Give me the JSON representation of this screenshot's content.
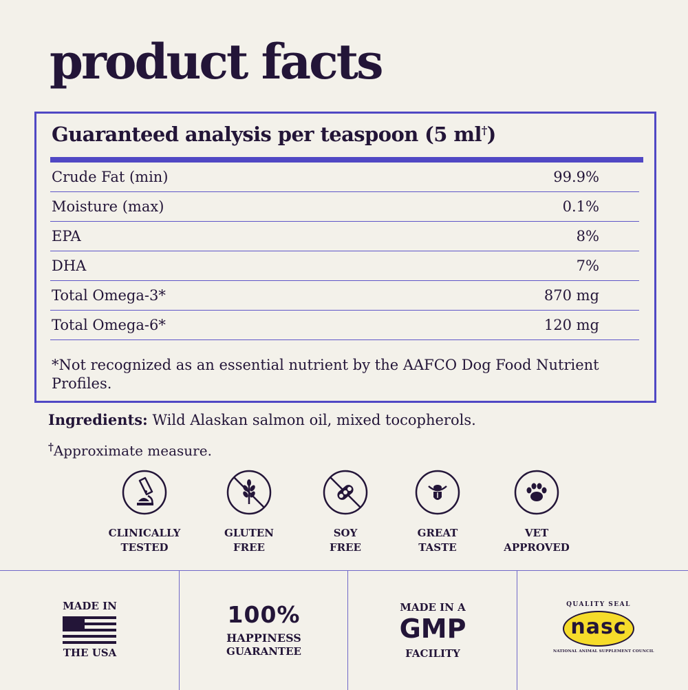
{
  "title": "product facts",
  "analysis": {
    "heading": "Guaranteed analysis per teaspoon (5 ml",
    "heading_mark": "†",
    "heading_close": ")",
    "rows": [
      {
        "label": "Crude Fat (min)",
        "value": "99.9%"
      },
      {
        "label": "Moisture (max)",
        "value": "0.1%"
      },
      {
        "label": "EPA",
        "value": "8%"
      },
      {
        "label": "DHA",
        "value": "7%"
      },
      {
        "label": "Total Omega-3*",
        "value": "870 mg"
      },
      {
        "label": "Total Omega-6*",
        "value": "120 mg"
      }
    ],
    "footnote": "*Not recognized as an essential nutrient by the AAFCO Dog Food Nutrient Profiles."
  },
  "ingredients": {
    "label": "Ingredients:",
    "text": " Wild Alaskan salmon oil, mixed tocopherols."
  },
  "approx": {
    "mark": "†",
    "text": "Approximate measure."
  },
  "badges": [
    {
      "label": "CLINICALLY\nTESTED",
      "icon": "microscope-icon"
    },
    {
      "label": "GLUTEN\nFREE",
      "icon": "no-wheat-icon"
    },
    {
      "label": "SOY\nFREE",
      "icon": "no-soy-icon"
    },
    {
      "label": "GREAT\nTASTE",
      "icon": "dog-tongue-icon"
    },
    {
      "label": "VET\nAPPROVED",
      "icon": "paw-icon"
    }
  ],
  "footer": {
    "usa_top": "MADE IN",
    "usa_bottom": "THE USA",
    "guarantee_big": "100%",
    "guarantee_line1": "HAPPINESS",
    "guarantee_line2": "GUARANTEE",
    "gmp_top": "MADE IN A",
    "gmp_big": "GMP",
    "gmp_bottom": "FACILITY",
    "nasc_top": "QUALITY SEAL",
    "nasc_logo": "nasc",
    "nasc_bottom": "NATIONAL ANIMAL SUPPLEMENT COUNCIL"
  },
  "colors": {
    "background": "#f3f1ea",
    "ink": "#231538",
    "accent": "#5048c4",
    "seal_yellow": "#f6dc2a"
  }
}
